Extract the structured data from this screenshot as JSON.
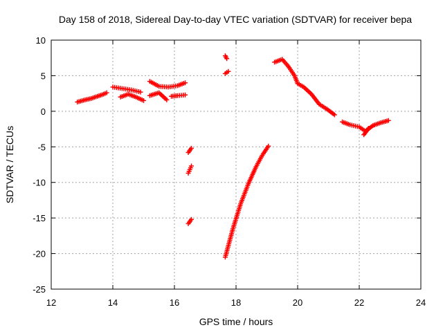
{
  "chart_data": {
    "type": "scatter",
    "title": "Day 158 of 2018, Sidereal Day-to-day VTEC variation (SDTVAR) for receiver bepa",
    "xlabel": "GPS time / hours",
    "ylabel": "SDTVAR / TECUs",
    "xlim": [
      12,
      24
    ],
    "ylim": [
      -25,
      10
    ],
    "xticks": [
      12,
      14,
      16,
      18,
      20,
      22,
      24
    ],
    "yticks": [
      10,
      5,
      0,
      -5,
      -10,
      -15,
      -20,
      -25
    ],
    "xtick_labels": [
      "12",
      "14",
      "16",
      "18",
      "20",
      "22",
      "24"
    ],
    "ytick_labels": [
      "10",
      "5",
      "0",
      "-5",
      "-10",
      "-15",
      "-20",
      "-25"
    ],
    "grid": true,
    "marker": "+",
    "color": "#ff0000",
    "segments": [
      {
        "x": [
          12.85,
          13.1,
          13.3,
          13.5,
          13.7,
          13.8
        ],
        "y": [
          1.3,
          1.6,
          1.8,
          2.1,
          2.4,
          2.6
        ]
      },
      {
        "x": [
          14.0,
          14.3,
          14.6,
          14.9
        ],
        "y": [
          3.4,
          3.2,
          3.0,
          2.7
        ]
      },
      {
        "x": [
          14.25,
          14.5,
          14.75,
          15.0
        ],
        "y": [
          2.0,
          2.4,
          2.0,
          1.5
        ]
      },
      {
        "x": [
          15.2,
          15.5,
          15.8,
          16.1,
          16.35
        ],
        "y": [
          4.2,
          3.5,
          3.4,
          3.6,
          4.0
        ]
      },
      {
        "x": [
          15.2,
          15.5,
          15.75
        ],
        "y": [
          2.2,
          2.6,
          1.6
        ]
      },
      {
        "x": [
          15.9,
          16.1,
          16.35
        ],
        "y": [
          2.1,
          2.2,
          2.3
        ]
      },
      {
        "x": [
          16.45,
          16.55
        ],
        "y": [
          -5.8,
          -5.2
        ]
      },
      {
        "x": [
          16.45,
          16.55
        ],
        "y": [
          -8.7,
          -7.7
        ]
      },
      {
        "x": [
          16.45,
          16.55
        ],
        "y": [
          -15.8,
          -15.2
        ]
      },
      {
        "x": [
          17.65,
          17.7
        ],
        "y": [
          7.8,
          7.4
        ]
      },
      {
        "x": [
          17.65,
          17.75
        ],
        "y": [
          5.3,
          5.6
        ]
      },
      {
        "x": [
          17.65,
          17.9,
          18.15,
          18.4,
          18.65,
          18.85,
          19.05
        ],
        "y": [
          -20.5,
          -16.5,
          -13.0,
          -10.2,
          -7.8,
          -6.2,
          -4.9
        ]
      },
      {
        "x": [
          19.25,
          19.5,
          19.7,
          19.9,
          20.0,
          20.2,
          20.45,
          20.7,
          20.95,
          21.2
        ],
        "y": [
          6.9,
          7.3,
          6.3,
          5.0,
          3.9,
          3.4,
          2.4,
          1.0,
          0.3,
          -0.5
        ]
      },
      {
        "x": [
          21.45,
          21.7,
          22.0,
          22.2,
          22.45,
          22.7,
          22.95
        ],
        "y": [
          -1.5,
          -1.9,
          -2.2,
          -2.8,
          -2.0,
          -1.6,
          -1.3
        ]
      },
      {
        "x": [
          22.15,
          22.3
        ],
        "y": [
          -3.3,
          -2.4
        ]
      }
    ]
  }
}
